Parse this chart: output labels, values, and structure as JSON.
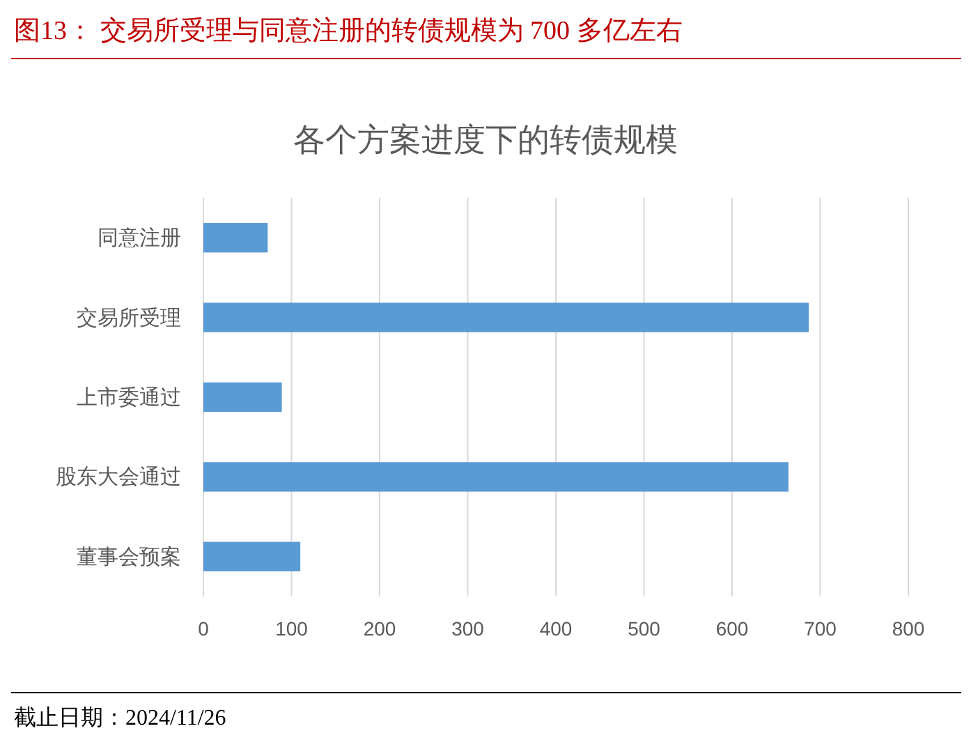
{
  "chart_data": {
    "type": "bar",
    "orientation": "horizontal",
    "title": "图13：  交易所受理与同意注册的转债规模为 700 多亿左右",
    "subtitle": "各个方案进度下的转债规模",
    "categories": [
      "同意注册",
      "交易所受理",
      "上市委通过",
      "股东大会通过",
      "董事会预案"
    ],
    "values": [
      73,
      687,
      89,
      664,
      110
    ],
    "color": "#5b9bd5",
    "xlim": [
      0,
      800
    ],
    "xticks": [
      0,
      100,
      200,
      300,
      400,
      500,
      600,
      700,
      800
    ],
    "grid": "x",
    "annotations": [
      "截止日期：2024/11/26"
    ]
  }
}
